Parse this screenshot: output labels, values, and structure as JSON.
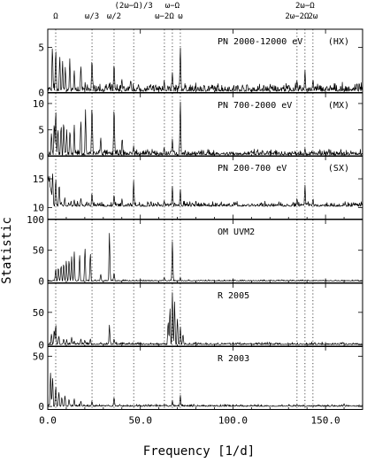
{
  "chart_data": {
    "type": "line",
    "xlabel": "Frequency [1/d]",
    "ylabel": "Statistic",
    "xlim": [
      0,
      170
    ],
    "x_ticks": [
      "0.0",
      "50.0",
      "100.0",
      "150.0"
    ],
    "x_tick_values": [
      0,
      50,
      100,
      150
    ],
    "grid": false,
    "legend": "none",
    "harmonics": [
      {
        "label": "Ω",
        "freq": 4.3,
        "row": "upper"
      },
      {
        "label": "ω/3",
        "freq": 23.9,
        "row": "upper"
      },
      {
        "label": "ω/2",
        "freq": 35.8,
        "row": "upper"
      },
      {
        "label": "(2ω−Ω)/3",
        "freq": 46.4,
        "row": "top"
      },
      {
        "label": "ω−2Ω",
        "freq": 63.0,
        "row": "upper"
      },
      {
        "label": "ω−Ω",
        "freq": 67.3,
        "row": "top"
      },
      {
        "label": "ω",
        "freq": 71.6,
        "row": "upper"
      },
      {
        "label": "2ω−Ω",
        "freq": 138.9,
        "row": "top"
      },
      {
        "label": "2ω−2Ω",
        "freq": 134.6,
        "row": "upper"
      },
      {
        "label": "2ω",
        "freq": 143.2,
        "row": "upper"
      }
    ],
    "panels": [
      {
        "name": "PN 2000-12000 eV",
        "band": "(HX)",
        "ylim": [
          0,
          7
        ],
        "y_ticks": [
          "0",
          "5"
        ],
        "y_tick_values": [
          0,
          5
        ],
        "peaks": [
          [
            2.5,
            5.4
          ],
          [
            4.3,
            5.0
          ],
          [
            6.5,
            4.2
          ],
          [
            8.0,
            3.4
          ],
          [
            9.5,
            2.8
          ],
          [
            11.9,
            3.6
          ],
          [
            14.3,
            2.4
          ],
          [
            17.9,
            3.1
          ],
          [
            23.9,
            3.9
          ],
          [
            35.8,
            3.4
          ],
          [
            40.0,
            1.5
          ],
          [
            44.8,
            1.4
          ],
          [
            62.9,
            1.2
          ],
          [
            67.3,
            2.2
          ],
          [
            71.6,
            5.2
          ],
          [
            134.6,
            1.3
          ],
          [
            138.9,
            2.4
          ],
          [
            143.2,
            1.4
          ]
        ],
        "noise": 0.5
      },
      {
        "name": "PN 700-2000 eV",
        "band": "(MX)",
        "ylim": [
          0,
          12
        ],
        "y_ticks": [
          "0",
          "5",
          "10"
        ],
        "y_tick_values": [
          0,
          5,
          10
        ],
        "peaks": [
          [
            2.0,
            4.5
          ],
          [
            3.5,
            6.8
          ],
          [
            4.3,
            9.2
          ],
          [
            5.5,
            5.5
          ],
          [
            7.2,
            6.2
          ],
          [
            8.6,
            7.0
          ],
          [
            10.2,
            4.8
          ],
          [
            12.0,
            5.2
          ],
          [
            14.3,
            6.0
          ],
          [
            17.9,
            7.2
          ],
          [
            20.4,
            8.6
          ],
          [
            23.9,
            10.4
          ],
          [
            28.6,
            3.6
          ],
          [
            35.8,
            10.0
          ],
          [
            40.2,
            3.6
          ],
          [
            46.4,
            1.8
          ],
          [
            62.9,
            1.4
          ],
          [
            67.3,
            3.2
          ],
          [
            71.6,
            10.9
          ],
          [
            138.9,
            1.3
          ]
        ],
        "noise": 0.6
      },
      {
        "name": "PN 200-700 eV",
        "band": "(SX)",
        "ylim": [
          8,
          19
        ],
        "y_ticks": [
          "10",
          "15"
        ],
        "y_tick_values": [
          10,
          15
        ],
        "baseline": 10.2,
        "peaks": [
          [
            1.0,
            5.5
          ],
          [
            2.6,
            6.5
          ],
          [
            4.3,
            5.3
          ],
          [
            6.2,
            4.3
          ],
          [
            9.2,
            1.6
          ],
          [
            14.3,
            1.2
          ],
          [
            17.9,
            1.6
          ],
          [
            23.9,
            2.6
          ],
          [
            35.8,
            2.3
          ],
          [
            40.1,
            1.4
          ],
          [
            46.4,
            4.6
          ],
          [
            62.9,
            1.0
          ],
          [
            67.3,
            3.7
          ],
          [
            71.6,
            3.2
          ],
          [
            138.9,
            3.8
          ],
          [
            134.6,
            1.5
          ],
          [
            143.2,
            1.5
          ]
        ],
        "noise": 0.5
      },
      {
        "name": "OM UVM2",
        "band": "",
        "ylim": [
          -3,
          100
        ],
        "y_ticks": [
          "0",
          "50",
          "100"
        ],
        "y_tick_values": [
          0,
          50,
          100
        ],
        "peaks": [
          [
            4.3,
            22
          ],
          [
            5.7,
            25
          ],
          [
            7.2,
            28
          ],
          [
            8.6,
            32
          ],
          [
            10.0,
            35
          ],
          [
            11.5,
            38
          ],
          [
            12.9,
            42
          ],
          [
            14.3,
            50
          ],
          [
            17.2,
            45
          ],
          [
            20.1,
            58
          ],
          [
            23.0,
            50
          ],
          [
            28.6,
            12
          ],
          [
            33.3,
            82
          ],
          [
            35.8,
            15
          ],
          [
            62.9,
            6
          ],
          [
            67.3,
            68
          ],
          [
            71.6,
            6
          ],
          [
            100.0,
            2
          ]
        ],
        "noise": 1.2
      },
      {
        "name": "R 2005",
        "band": "",
        "ylim": [
          -3,
          95
        ],
        "y_ticks": [
          "0",
          "50"
        ],
        "y_tick_values": [
          0,
          50
        ],
        "peaks": [
          [
            2.0,
            18
          ],
          [
            3.5,
            26
          ],
          [
            4.3,
            34
          ],
          [
            6.0,
            15
          ],
          [
            8.6,
            10
          ],
          [
            10.2,
            8
          ],
          [
            12.9,
            12
          ],
          [
            14.3,
            6
          ],
          [
            17.9,
            10
          ],
          [
            20.0,
            8
          ],
          [
            23.0,
            10
          ],
          [
            33.3,
            32
          ],
          [
            35.8,
            10
          ],
          [
            65.0,
            40
          ],
          [
            66.0,
            62
          ],
          [
            67.3,
            85
          ],
          [
            68.5,
            68
          ],
          [
            70.0,
            44
          ],
          [
            71.6,
            30
          ],
          [
            73.0,
            18
          ],
          [
            100.0,
            3
          ],
          [
            130.0,
            2
          ]
        ],
        "noise": 2.2
      },
      {
        "name": "R 2003",
        "band": "",
        "ylim": [
          -3,
          60
        ],
        "y_ticks": [
          "0",
          "50"
        ],
        "y_tick_values": [
          0,
          50
        ],
        "peaks": [
          [
            1.5,
            36
          ],
          [
            2.6,
            32
          ],
          [
            4.3,
            22
          ],
          [
            6.0,
            16
          ],
          [
            7.6,
            10
          ],
          [
            9.3,
            12
          ],
          [
            11.5,
            8
          ],
          [
            14.3,
            8
          ],
          [
            17.9,
            6
          ],
          [
            23.9,
            6
          ],
          [
            35.8,
            10
          ],
          [
            67.3,
            6
          ],
          [
            71.6,
            12
          ],
          [
            100.0,
            2
          ],
          [
            160.0,
            3
          ]
        ],
        "noise": 1.2
      }
    ]
  }
}
